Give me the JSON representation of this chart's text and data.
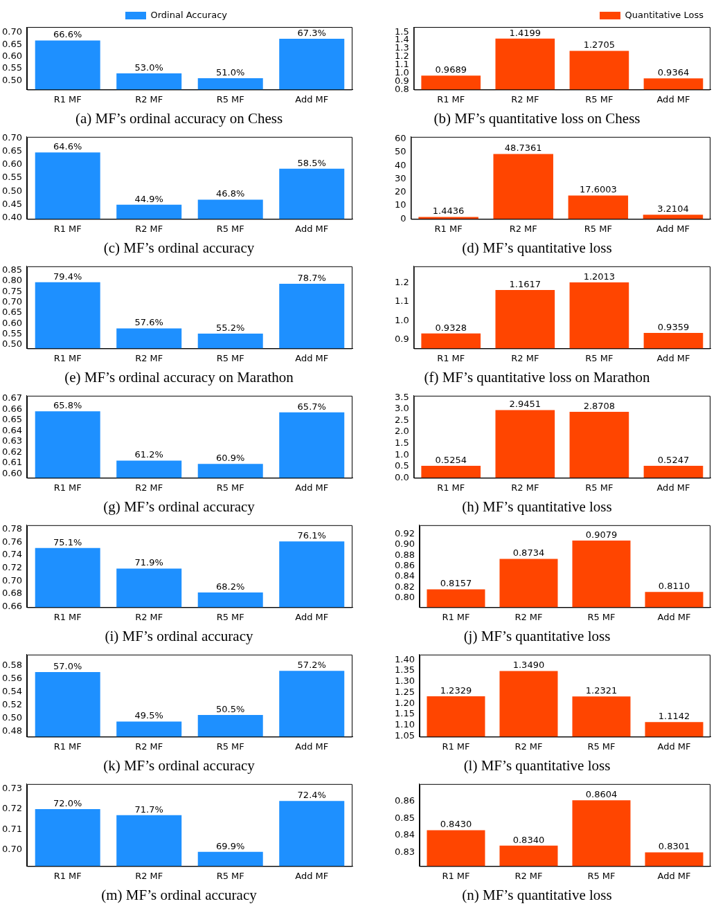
{
  "chart_data": [
    {
      "type": "bar",
      "title": "(a) MF’s ordinal accuracy on Chess",
      "categories": [
        "R1 MF",
        "R2 MF",
        "R5 MF",
        "Add MF"
      ],
      "series": [
        {
          "name": "Ordinal Accuracy",
          "color": "#1e90ff",
          "values": [
            0.666,
            0.53,
            0.51,
            0.673
          ],
          "value_labels": [
            "66.6%",
            "53.0%",
            "51.0%",
            "67.3%"
          ]
        }
      ],
      "ylim": [
        0.463,
        0.722
      ],
      "yticks": [
        {
          "value": 0.5,
          "label": "0.50"
        },
        {
          "value": 0.55,
          "label": "0.55"
        },
        {
          "value": 0.6,
          "label": "0.60"
        },
        {
          "value": 0.65,
          "label": "0.65"
        },
        {
          "value": 0.7,
          "label": "0.70"
        }
      ],
      "legend": "top"
    },
    {
      "type": "bar",
      "title": "(b) MF’s quantitative loss on Chess",
      "categories": [
        "R1 MF",
        "R2 MF",
        "R5 MF",
        "Add MF"
      ],
      "series": [
        {
          "name": "Quantitative Loss",
          "color": "#ff4500",
          "values": [
            0.9689,
            1.4199,
            1.2705,
            0.9364
          ],
          "value_labels": [
            "0.9689",
            "1.4199",
            "1.2705",
            "0.9364"
          ]
        }
      ],
      "ylim": [
        0.8,
        1.56
      ],
      "yticks": [
        {
          "value": 0.8,
          "label": "0.8"
        },
        {
          "value": 0.9,
          "label": "0.9"
        },
        {
          "value": 1.0,
          "label": "1.0"
        },
        {
          "value": 1.1,
          "label": "1.1"
        },
        {
          "value": 1.2,
          "label": "1.2"
        },
        {
          "value": 1.3,
          "label": "1.3"
        },
        {
          "value": 1.4,
          "label": "1.4"
        },
        {
          "value": 1.5,
          "label": "1.5"
        }
      ],
      "legend": "top right"
    },
    {
      "type": "bar",
      "title": "(c) MF’s ordinal accuracy",
      "categories": [
        "R1 MF",
        "R2 MF",
        "R5 MF",
        "Add MF"
      ],
      "series": [
        {
          "color": "#1e90ff",
          "values": [
            0.646,
            0.449,
            0.468,
            0.585
          ],
          "value_labels": [
            "64.6%",
            "44.9%",
            "46.8%",
            "58.5%"
          ]
        }
      ],
      "ylim": [
        0.395,
        0.705
      ],
      "yticks": [
        {
          "value": 0.4,
          "label": "0.40"
        },
        {
          "value": 0.45,
          "label": "0.45"
        },
        {
          "value": 0.5,
          "label": "0.50"
        },
        {
          "value": 0.55,
          "label": "0.55"
        },
        {
          "value": 0.6,
          "label": "0.60"
        },
        {
          "value": 0.65,
          "label": "0.65"
        },
        {
          "value": 0.7,
          "label": "0.70"
        }
      ]
    },
    {
      "type": "bar",
      "title": "(d) MF’s quantitative loss",
      "categories": [
        "R1 MF",
        "R2 MF",
        "R5 MF",
        "Add MF"
      ],
      "series": [
        {
          "color": "#ff4500",
          "values": [
            1.4436,
            48.7361,
            17.6003,
            3.2104
          ],
          "value_labels": [
            "1.4436",
            "48.7361",
            "17.6003",
            "3.2104"
          ]
        }
      ],
      "ylim": [
        0,
        61.5
      ],
      "yticks": [
        0,
        10,
        20,
        30,
        40,
        50,
        60
      ]
    },
    {
      "type": "bar",
      "title": "(e) MF’s ordinal accuracy on Marathon",
      "categories": [
        "R1 MF",
        "R2 MF",
        "R5 MF",
        "Add MF"
      ],
      "series": [
        {
          "color": "#1e90ff",
          "values": [
            0.794,
            0.576,
            0.552,
            0.787
          ],
          "value_labels": [
            "79.4%",
            "57.6%",
            "55.2%",
            "78.7%"
          ]
        }
      ],
      "ylim": [
        0.482,
        0.869
      ],
      "yticks": [
        {
          "value": 0.5,
          "label": "0.50"
        },
        {
          "value": 0.55,
          "label": "0.55"
        },
        {
          "value": 0.6,
          "label": "0.60"
        },
        {
          "value": 0.65,
          "label": "0.65"
        },
        {
          "value": 0.7,
          "label": "0.70"
        },
        {
          "value": 0.75,
          "label": "0.75"
        },
        {
          "value": 0.8,
          "label": "0.80"
        },
        {
          "value": 0.85,
          "label": "0.85"
        }
      ]
    },
    {
      "type": "bar",
      "title": "(f) MF’s quantitative loss on Marathon",
      "categories": [
        "R1 MF",
        "R2 MF",
        "R5 MF",
        "Add MF"
      ],
      "series": [
        {
          "color": "#ff4500",
          "values": [
            0.9328,
            1.1617,
            1.2013,
            0.9359
          ],
          "value_labels": [
            "0.9328",
            "1.1617",
            "1.2013",
            "0.9359"
          ]
        }
      ],
      "ylim": [
        0.854,
        1.286
      ],
      "yticks": [
        {
          "value": 0.9,
          "label": "0.9"
        },
        {
          "value": 1.0,
          "label": "1.0"
        },
        {
          "value": 1.1,
          "label": "1.1"
        },
        {
          "value": 1.2,
          "label": "1.2"
        }
      ]
    },
    {
      "type": "bar",
      "title": "(g) MF’s ordinal accuracy",
      "categories": [
        "R1 MF",
        "R2 MF",
        "R5 MF",
        "Add MF"
      ],
      "series": [
        {
          "color": "#1e90ff",
          "values": [
            0.658,
            0.612,
            0.609,
            0.657
          ],
          "value_labels": [
            "65.8%",
            "61.2%",
            "60.9%",
            "65.7%"
          ]
        }
      ],
      "ylim": [
        0.596,
        0.6725
      ],
      "yticks": [
        {
          "value": 0.6,
          "label": "0.60"
        },
        {
          "value": 0.61,
          "label": "0.61"
        },
        {
          "value": 0.62,
          "label": "0.62"
        },
        {
          "value": 0.63,
          "label": "0.63"
        },
        {
          "value": 0.64,
          "label": "0.64"
        },
        {
          "value": 0.65,
          "label": "0.65"
        },
        {
          "value": 0.66,
          "label": "0.66"
        },
        {
          "value": 0.67,
          "label": "0.67"
        }
      ]
    },
    {
      "type": "bar",
      "title": "(h) MF’s quantitative loss",
      "categories": [
        "R1 MF",
        "R2 MF",
        "R5 MF",
        "Add MF"
      ],
      "series": [
        {
          "color": "#ff4500",
          "values": [
            0.5254,
            2.9451,
            2.8708,
            0.5247
          ],
          "value_labels": [
            "0.5254",
            "2.9451",
            "2.8708",
            "0.5247"
          ]
        }
      ],
      "ylim": [
        0,
        3.57
      ],
      "yticks": [
        {
          "value": 0,
          "label": "0.0"
        },
        {
          "value": 0.5,
          "label": "0.5"
        },
        {
          "value": 1.0,
          "label": "1.0"
        },
        {
          "value": 1.5,
          "label": "1.5"
        },
        {
          "value": 2.0,
          "label": "2.0"
        },
        {
          "value": 2.5,
          "label": "2.5"
        },
        {
          "value": 3.0,
          "label": "3.0"
        },
        {
          "value": 3.5,
          "label": "3.5"
        }
      ]
    },
    {
      "type": "bar",
      "title": "(i) MF’s ordinal accuracy",
      "categories": [
        "R1 MF",
        "R2 MF",
        "R5 MF",
        "Add MF"
      ],
      "series": [
        {
          "color": "#1e90ff",
          "values": [
            0.751,
            0.719,
            0.682,
            0.761
          ],
          "value_labels": [
            "75.1%",
            "71.9%",
            "68.2%",
            "76.1%"
          ]
        }
      ],
      "ylim": [
        0.659,
        0.7863
      ],
      "yticks": [
        {
          "value": 0.66,
          "label": "0.66"
        },
        {
          "value": 0.68,
          "label": "0.68"
        },
        {
          "value": 0.7,
          "label": "0.70"
        },
        {
          "value": 0.72,
          "label": "0.72"
        },
        {
          "value": 0.74,
          "label": "0.74"
        },
        {
          "value": 0.76,
          "label": "0.76"
        },
        {
          "value": 0.78,
          "label": "0.78"
        }
      ]
    },
    {
      "type": "bar",
      "title": "(j) MF’s quantitative loss",
      "categories": [
        "R1 MF",
        "R2 MF",
        "R5 MF",
        "Add MF"
      ],
      "series": [
        {
          "color": "#ff4500",
          "values": [
            0.8157,
            0.8734,
            0.9079,
            0.811
          ],
          "value_labels": [
            "0.8157",
            "0.8734",
            "0.9079",
            "0.8110"
          ]
        }
      ],
      "ylim": [
        0.782,
        0.937
      ],
      "yticks": [
        {
          "value": 0.8,
          "label": "0.80"
        },
        {
          "value": 0.82,
          "label": "0.82"
        },
        {
          "value": 0.84,
          "label": "0.84"
        },
        {
          "value": 0.86,
          "label": "0.86"
        },
        {
          "value": 0.88,
          "label": "0.88"
        },
        {
          "value": 0.9,
          "label": "0.90"
        },
        {
          "value": 0.92,
          "label": "0.92"
        }
      ]
    },
    {
      "type": "bar",
      "title": "(k) MF’s ordinal accuracy",
      "categories": [
        "R1 MF",
        "R2 MF",
        "R5 MF",
        "Add MF"
      ],
      "series": [
        {
          "color": "#1e90ff",
          "values": [
            0.57,
            0.495,
            0.505,
            0.572
          ],
          "value_labels": [
            "57.0%",
            "49.5%",
            "50.5%",
            "57.2%"
          ]
        }
      ],
      "ylim": [
        0.472,
        0.5965
      ],
      "yticks": [
        {
          "value": 0.48,
          "label": "0.48"
        },
        {
          "value": 0.5,
          "label": "0.50"
        },
        {
          "value": 0.52,
          "label": "0.52"
        },
        {
          "value": 0.54,
          "label": "0.54"
        },
        {
          "value": 0.56,
          "label": "0.56"
        },
        {
          "value": 0.58,
          "label": "0.58"
        }
      ]
    },
    {
      "type": "bar",
      "title": "(l) MF’s quantitative loss",
      "categories": [
        "R1 MF",
        "R2 MF",
        "R5 MF",
        "Add MF"
      ],
      "series": [
        {
          "color": "#ff4500",
          "values": [
            1.2329,
            1.349,
            1.2321,
            1.1142
          ],
          "value_labels": [
            "1.2329",
            "1.3490",
            "1.2321",
            "1.1142"
          ]
        }
      ],
      "ylim": [
        1.047,
        1.424
      ],
      "yticks": [
        {
          "value": 1.05,
          "label": "1.05"
        },
        {
          "value": 1.1,
          "label": "1.10"
        },
        {
          "value": 1.15,
          "label": "1.15"
        },
        {
          "value": 1.2,
          "label": "1.20"
        },
        {
          "value": 1.25,
          "label": "1.25"
        },
        {
          "value": 1.3,
          "label": "1.30"
        },
        {
          "value": 1.35,
          "label": "1.35"
        },
        {
          "value": 1.4,
          "label": "1.40"
        }
      ]
    },
    {
      "type": "bar",
      "title": "(m) MF’s ordinal accuracy",
      "categories": [
        "R1 MF",
        "R2 MF",
        "R5 MF",
        "Add MF"
      ],
      "series": [
        {
          "color": "#1e90ff",
          "values": [
            0.72,
            0.717,
            0.699,
            0.724
          ],
          "value_labels": [
            "72.0%",
            "71.7%",
            "69.9%",
            "72.4%"
          ]
        }
      ],
      "ylim": [
        0.692,
        0.7323
      ],
      "yticks": [
        {
          "value": 0.7,
          "label": "0.70"
        },
        {
          "value": 0.71,
          "label": "0.71"
        },
        {
          "value": 0.72,
          "label": "0.72"
        },
        {
          "value": 0.73,
          "label": "0.73"
        }
      ]
    },
    {
      "type": "bar",
      "title": "(n) MF’s quantitative loss",
      "categories": [
        "R1 MF",
        "R2 MF",
        "R5 MF",
        "Add MF"
      ],
      "series": [
        {
          "color": "#ff4500",
          "values": [
            0.843,
            0.834,
            0.8604,
            0.8301
          ],
          "value_labels": [
            "0.8430",
            "0.8340",
            "0.8604",
            "0.8301"
          ]
        }
      ],
      "ylim": [
        0.8221,
        0.8699
      ],
      "yticks": [
        {
          "value": 0.83,
          "label": "0.83"
        },
        {
          "value": 0.84,
          "label": "0.84"
        },
        {
          "value": 0.85,
          "label": "0.85"
        },
        {
          "value": 0.86,
          "label": "0.86"
        }
      ]
    }
  ]
}
